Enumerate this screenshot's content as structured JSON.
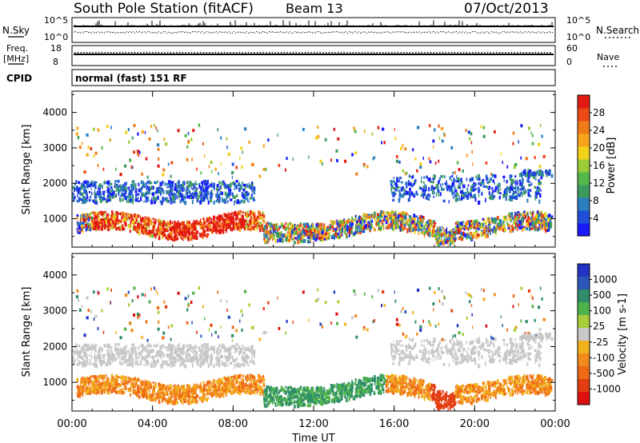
{
  "header": {
    "station": "South Pole Station (fitACF)",
    "beam": "Beam 13",
    "date": "07/Oct/2013"
  },
  "strips": {
    "nsky_label": "N.Sky",
    "nsky_tick_top": "10^5",
    "nsky_tick_bottom": "10^0",
    "nsearch_label": "N.Search",
    "nsearch_tick_top": "10^5",
    "nsearch_tick_bottom": "10^0",
    "freq_label_line1": "Freq.",
    "freq_label_line2": "[MHz]",
    "freq_tick_top": "18",
    "freq_tick_bottom": "8",
    "nave_label": "Nave",
    "nave_tick_top": "60",
    "nave_tick_bottom": "0",
    "cpid_label": "CPID",
    "cpid_value": "normal (fast) 151 RF"
  },
  "chart_data": [
    {
      "type": "heatmap",
      "panel": "power",
      "ylabel": "Slant Range [km]",
      "x_ticks": [
        "00:00",
        "04:00",
        "08:00",
        "12:00",
        "16:00",
        "20:00",
        "00:00"
      ],
      "y_ticks": [
        1000,
        2000,
        3000,
        4000
      ],
      "ylim": [
        200,
        4600
      ],
      "colorbar": {
        "label": "Power [dB]",
        "ticks": [
          "4",
          "8",
          "12",
          "16",
          "20",
          "24",
          "28"
        ],
        "colors": [
          "#1a1aff",
          "#1f4fd8",
          "#2a7fbf",
          "#3d9a5f",
          "#55b84a",
          "#9ccc3a",
          "#f2d21a",
          "#f7a51c",
          "#f07c19",
          "#ec4a17",
          "#e31a12"
        ]
      },
      "grid": false
    },
    {
      "type": "heatmap",
      "panel": "velocity",
      "ylabel": "Slant Range [km]",
      "xlabel": "Time UT",
      "x_ticks": [
        "00:00",
        "04:00",
        "08:00",
        "12:00",
        "16:00",
        "20:00",
        "00:00"
      ],
      "y_ticks": [
        1000,
        2000,
        3000,
        4000
      ],
      "ylim": [
        200,
        4600
      ],
      "colorbar": {
        "label": "Velocity [m s-1]",
        "ticks": [
          "1000",
          "500",
          "100",
          "25",
          "-25",
          "-100",
          "-500",
          "-1000"
        ],
        "colors": [
          "#2233c4",
          "#2a57b8",
          "#2f8d6a",
          "#4fb34c",
          "#a8cf3b",
          "#c8c8c8",
          "#f2b21e",
          "#f28a1c",
          "#ef6a17",
          "#e33d12",
          "#de1010"
        ]
      },
      "grid": false
    }
  ]
}
